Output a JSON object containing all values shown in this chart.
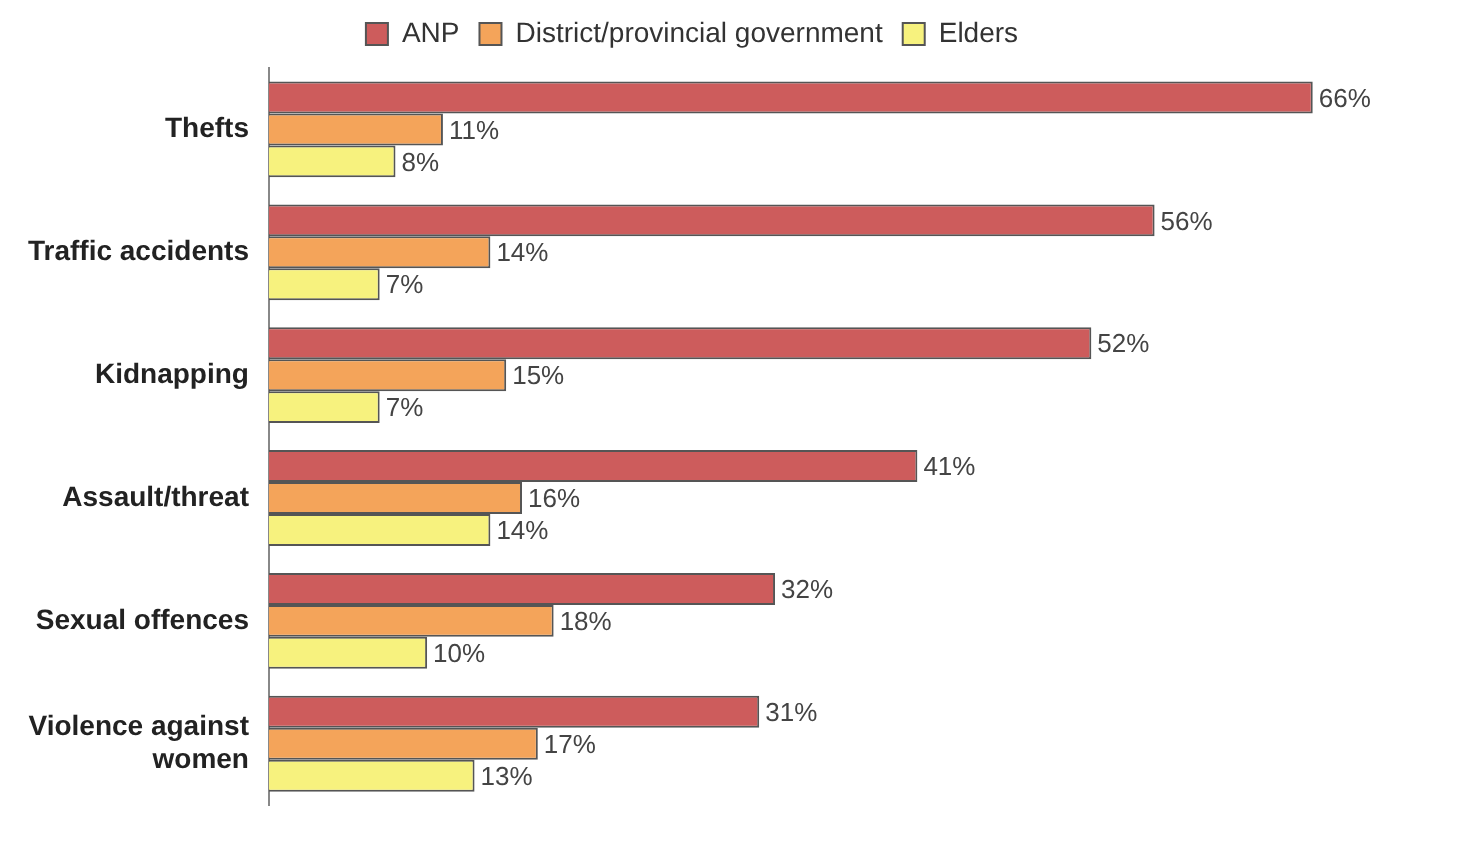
{
  "chart_data": {
    "type": "bar",
    "orientation": "horizontal",
    "categories": [
      "Thefts",
      "Traffic accidents",
      "Kidnapping",
      "Assault/threat",
      "Sexual offences",
      "Violence against women"
    ],
    "series": [
      {
        "name": "ANP",
        "color": "#cd5c5c",
        "values": [
          66,
          56,
          52,
          41,
          32,
          31
        ],
        "value_labels": [
          "66%",
          "56%",
          "52%",
          "41%",
          "32%",
          "31%"
        ]
      },
      {
        "name": "District/provincial government",
        "color": "#f4a45a",
        "values": [
          11,
          14,
          15,
          16,
          18,
          17
        ],
        "value_labels": [
          "11%",
          "14%",
          "15%",
          "16%",
          "18%",
          "17%"
        ]
      },
      {
        "name": "Elders",
        "color": "#f7f27e",
        "values": [
          8,
          7,
          7,
          14,
          10,
          13
        ],
        "value_labels": [
          "8%",
          "7%",
          "7%",
          "14%",
          "10%",
          "13%"
        ]
      }
    ],
    "legend": "top"
  }
}
